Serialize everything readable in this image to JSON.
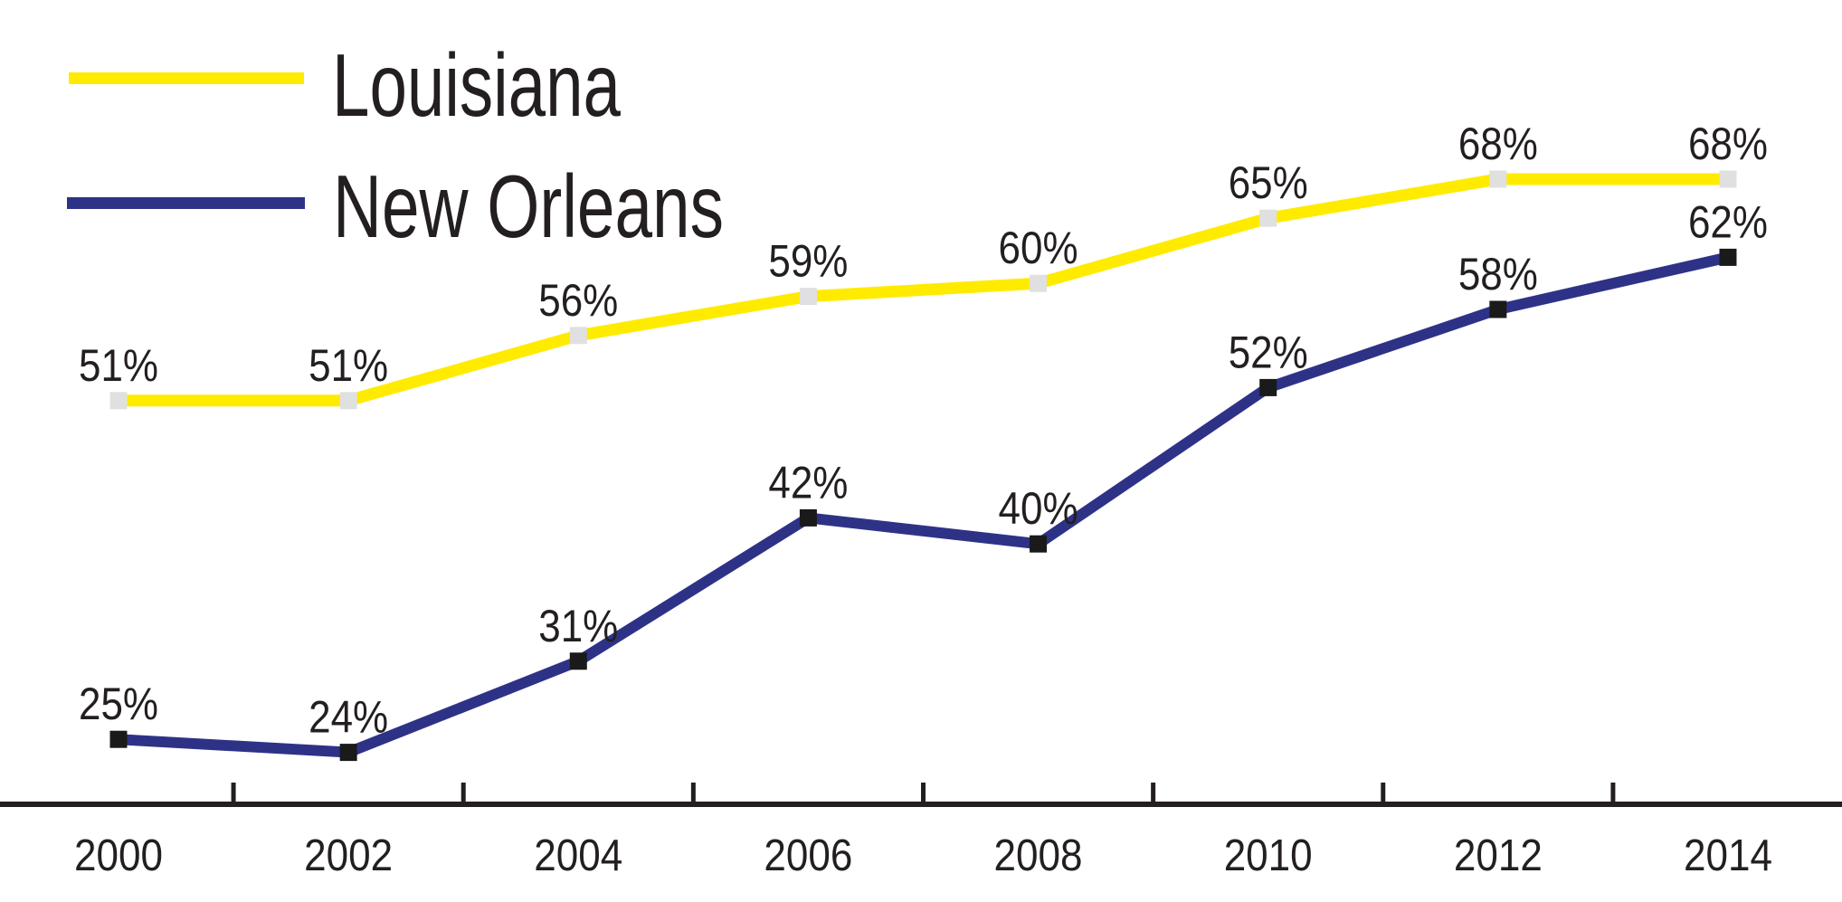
{
  "chart_data": {
    "type": "line",
    "title": "",
    "xlabel": "",
    "ylabel": "",
    "y_unit": "%",
    "x": [
      2000,
      2002,
      2004,
      2006,
      2008,
      2010,
      2012,
      2014
    ],
    "x_tick_labels": [
      "2000",
      "2002",
      "2004",
      "2006",
      "2008",
      "2010",
      "2012",
      "2014"
    ],
    "minor_tick_years": [
      2001,
      2003,
      2005,
      2007,
      2009,
      2011,
      2013
    ],
    "ylim": [
      20,
      72
    ],
    "y_axis_shown": false,
    "grid": false,
    "legend_position": "top-left",
    "axis_color": "#231F20",
    "series": [
      {
        "name": "Louisiana",
        "values": [
          51,
          51,
          56,
          59,
          60,
          65,
          68,
          68
        ],
        "labels": [
          "51%",
          "51%",
          "56%",
          "59%",
          "60%",
          "65%",
          "68%",
          "68%"
        ],
        "color": "#FFEB00",
        "marker": "square",
        "marker_color": "#E0E0E0"
      },
      {
        "name": "New Orleans",
        "values": [
          25,
          24,
          31,
          42,
          40,
          52,
          58,
          62
        ],
        "labels": [
          "25%",
          "24%",
          "31%",
          "42%",
          "40%",
          "52%",
          "58%",
          "62%"
        ],
        "color": "#2E3287",
        "marker": "square",
        "marker_color": "#1A1A1A"
      }
    ]
  },
  "legend": {
    "items": [
      {
        "label": "Louisiana",
        "color": "#FFEB00"
      },
      {
        "label": "New Orleans",
        "color": "#2E3287"
      }
    ]
  }
}
